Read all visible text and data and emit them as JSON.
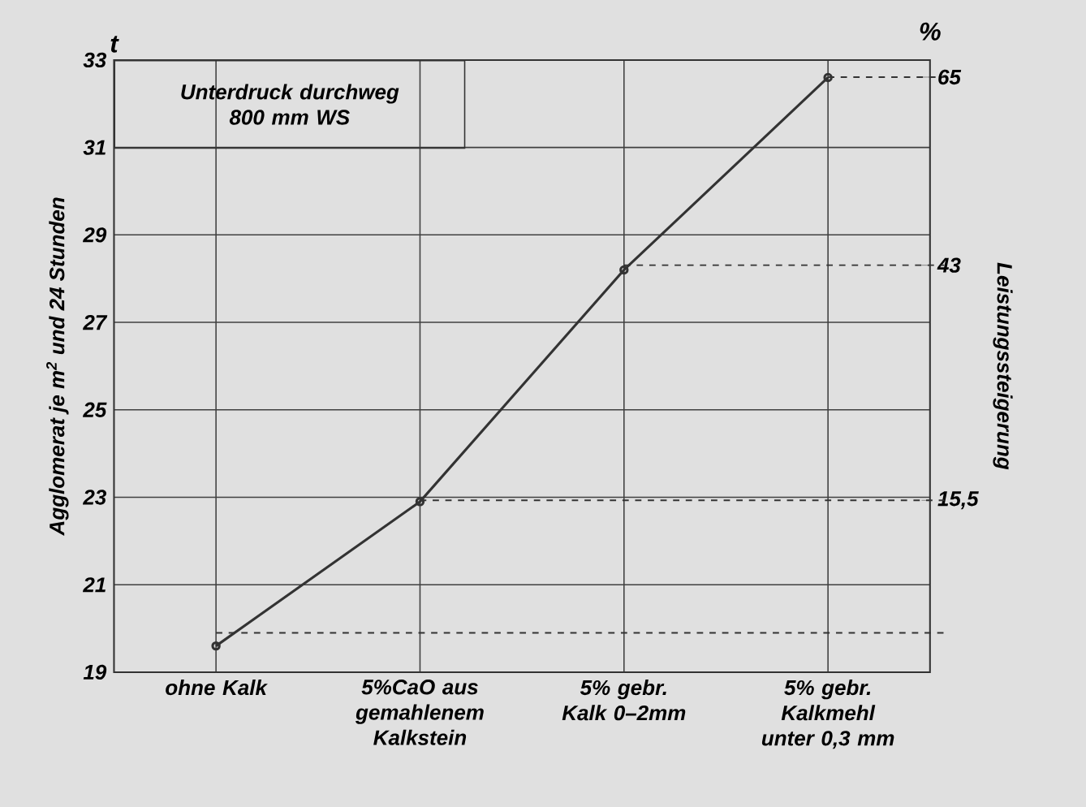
{
  "chart_data": {
    "type": "line",
    "categories": [
      "ohne Kalk",
      "5%CaO aus gemahlenem Kalkstein",
      "5% gebr. Kalk 0–2mm",
      "5% gebr. Kalkmehl unter 0,3 mm"
    ],
    "series": [
      {
        "color": "#333333",
        "values": [
          19.6,
          22.9,
          28.2,
          32.6
        ]
      }
    ],
    "ylabel": "Agglomerat je m$^{2}$ und 24 Stunden",
    "y2label": "Leistungssteigerung",
    "ylim": [
      19,
      33
    ],
    "yticks": [
      19,
      21,
      23,
      25,
      27,
      29,
      31,
      33
    ],
    "y2lim": [
      -4.6,
      67
    ],
    "y2ticks": [
      {
        "value": 15.5,
        "label": "15,5"
      },
      43,
      65
    ],
    "ref_lines": [
      {
        "axis": "y2",
        "value": 0,
        "line_style": "dashed"
      },
      {
        "axis": "y2",
        "value": 15.5,
        "line_style": "dashed"
      },
      {
        "axis": "y2",
        "value": 43,
        "line_style": "dashed"
      },
      {
        "axis": "y2",
        "value": 65,
        "line_style": "dashed"
      }
    ],
    "annotations": [
      "Unterdruck durchweg 800 mm WS",
      "t",
      "%"
    ],
    "grid": true,
    "marker": "circle",
    "line_style": "solid"
  }
}
